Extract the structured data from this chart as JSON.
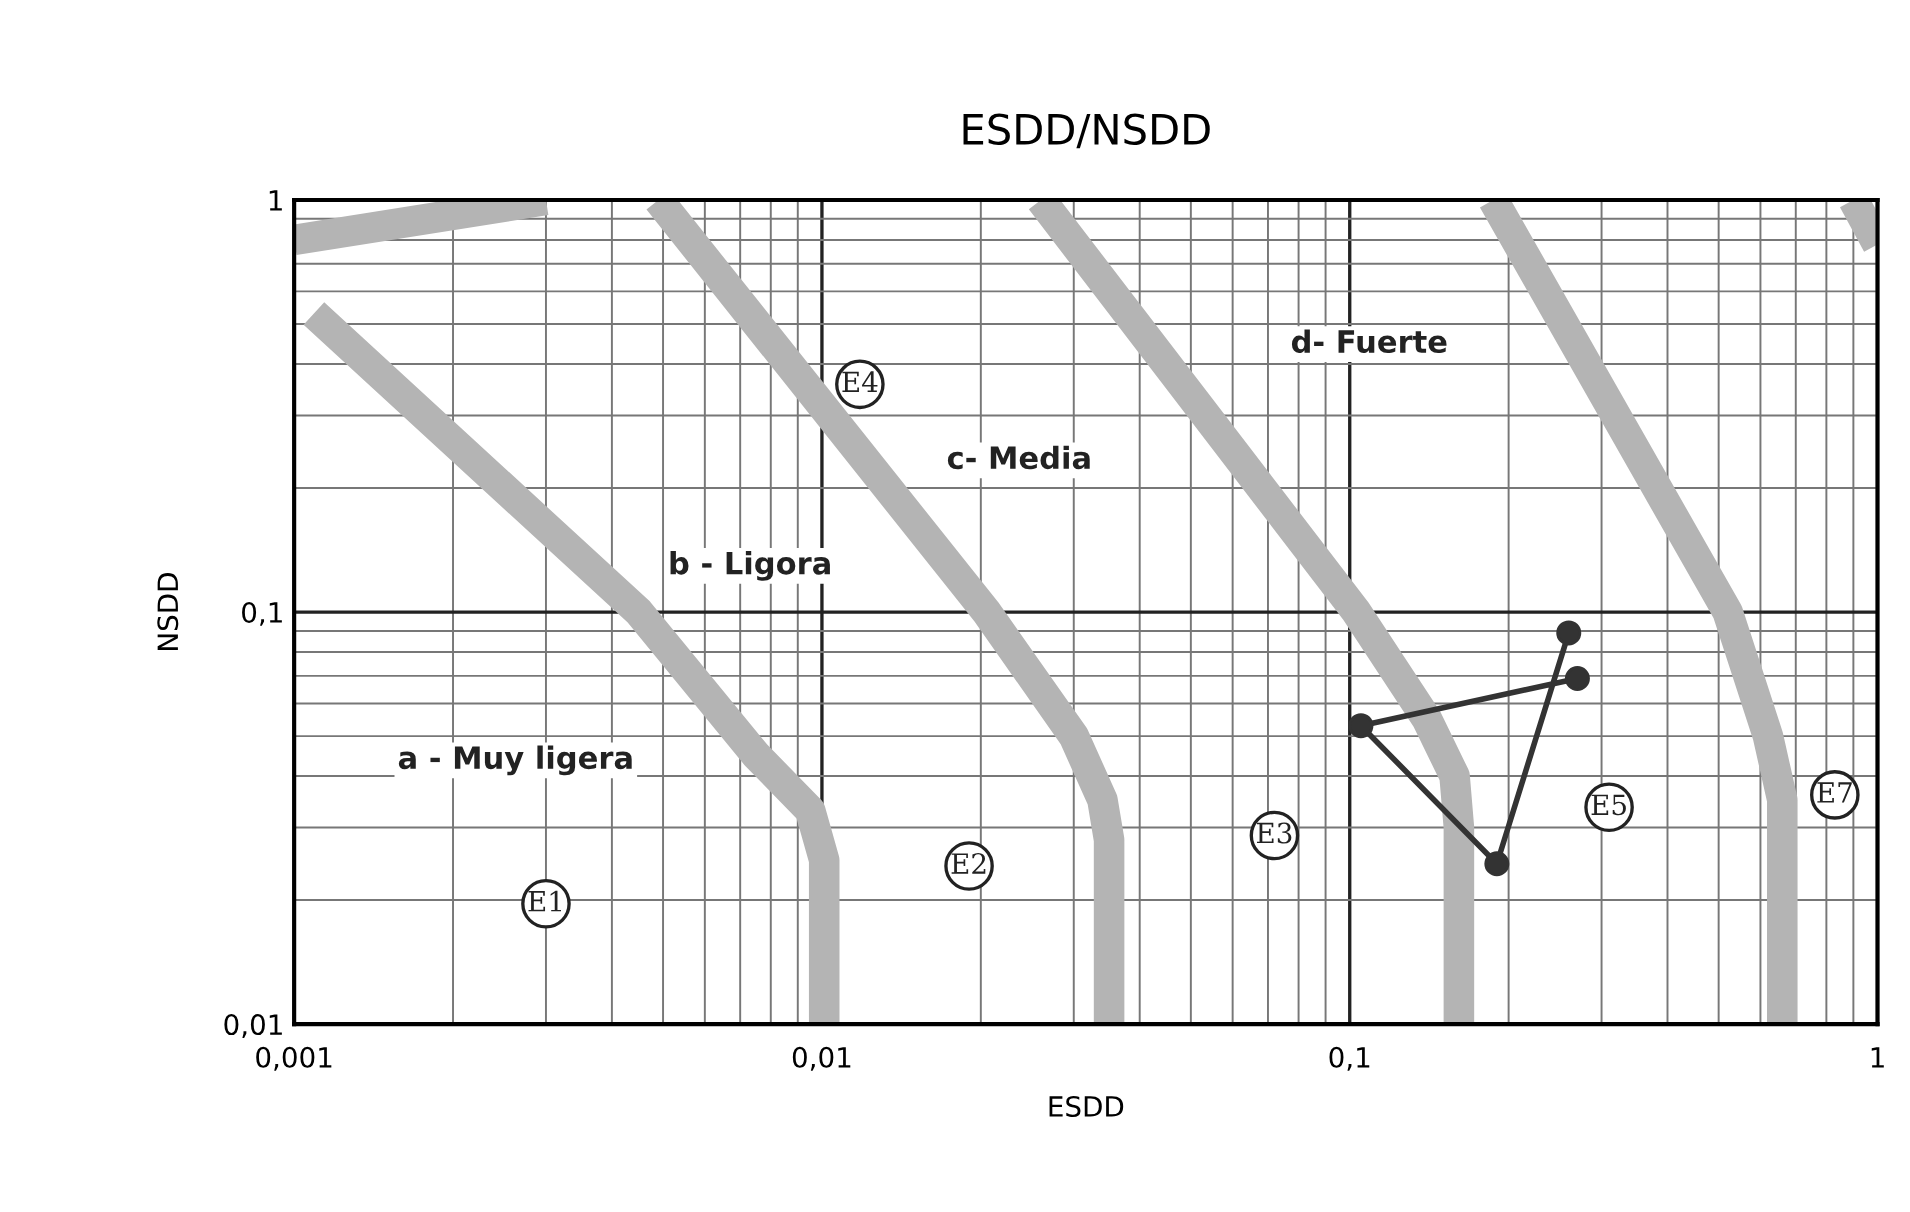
{
  "chart_data": {
    "type": "line",
    "title": "ESDD/NSDD",
    "xlabel": "ESDD",
    "ylabel": "NSDD",
    "log": "xy",
    "grid": true,
    "xlim": [
      0.001,
      1
    ],
    "ylim": [
      0.01,
      1
    ],
    "xticks": [
      {
        "value": 0.001,
        "label": "0,001"
      },
      {
        "value": 0.01,
        "label": "0,01"
      },
      {
        "value": 0.1,
        "label": "0,1"
      },
      1
    ],
    "yticks": [
      {
        "value": 0.01,
        "label": "0,01"
      },
      {
        "value": 0.1,
        "label": "0,1"
      },
      1
    ],
    "series": [
      {
        "color": "#b4b4b4",
        "marker": "none",
        "x": [
          0.001,
          0.003
        ],
        "values": [
          0.8,
          1
        ]
      },
      {
        "color": "#b4b4b4",
        "marker": "none",
        "x": [
          0.00109,
          0.0045,
          0.0075,
          0.0095,
          0.0101,
          0.0101
        ],
        "values": [
          0.53,
          0.1,
          0.045,
          0.033,
          0.025,
          0.01
        ]
      },
      {
        "color": "#b4b4b4",
        "marker": "none",
        "x": [
          0.0049,
          0.0205,
          0.03,
          0.034,
          0.035,
          0.035
        ],
        "values": [
          1,
          0.1,
          0.05,
          0.035,
          0.028,
          0.01
        ]
      },
      {
        "color": "#b4b4b4",
        "marker": "none",
        "x": [
          0.026,
          0.103,
          0.14,
          0.158,
          0.161,
          0.161
        ],
        "values": [
          1,
          0.1,
          0.055,
          0.04,
          0.03,
          0.01
        ]
      },
      {
        "color": "#b4b4b4",
        "marker": "none",
        "x": [
          0.187,
          0.52,
          0.62,
          0.66,
          0.66
        ],
        "values": [
          1,
          0.1,
          0.05,
          0.035,
          0.01
        ]
      },
      {
        "color": "#b4b4b4",
        "marker": "none",
        "x": [
          0.9,
          1
        ],
        "values": [
          1,
          0.78
        ]
      },
      {
        "color": "#333333",
        "marker": "circle",
        "x": [
          0.27,
          0.105,
          0.19,
          0.26
        ],
        "values": [
          0.069,
          0.053,
          0.0245,
          0.089
        ]
      }
    ],
    "annotations": [
      "a - Muy ligera",
      "b - Ligora",
      "c- Media",
      "d- Fuerte",
      {
        "text": "E1",
        "x": 0.003,
        "y": 0.0196
      },
      {
        "text": "E2",
        "x": 0.019,
        "y": 0.0242
      },
      {
        "text": "E3",
        "x": 0.072,
        "y": 0.0287
      },
      {
        "text": "E4",
        "x": 0.0118,
        "y": 0.357
      },
      {
        "text": "E5",
        "x": 0.31,
        "y": 0.0336
      },
      {
        "text": "E7",
        "x": 0.83,
        "y": 0.036
      }
    ]
  }
}
